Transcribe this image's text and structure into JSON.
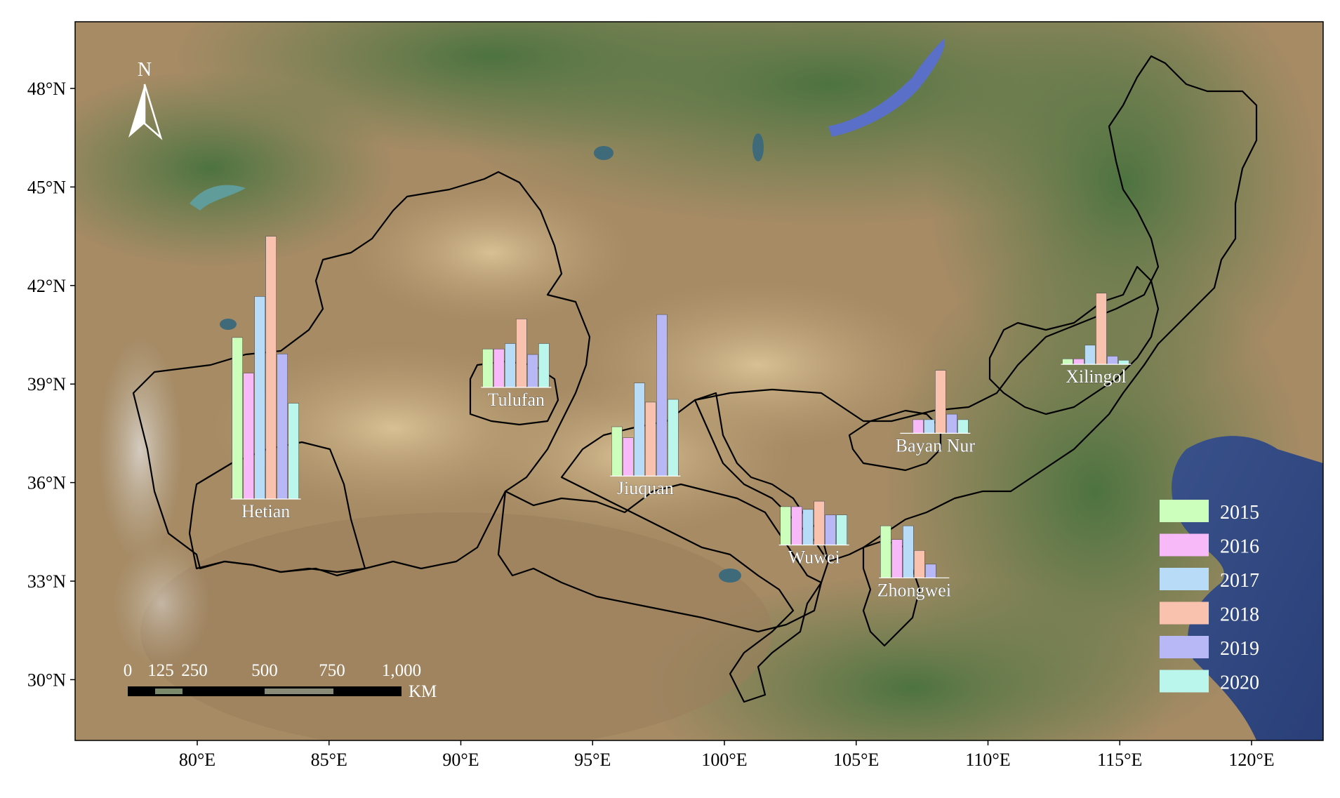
{
  "map": {
    "north_label": "N",
    "lat_labels": [
      "48°N",
      "45°N",
      "42°N",
      "39°N",
      "36°N",
      "33°N",
      "30°N"
    ],
    "lon_labels": [
      "80°E",
      "85°E",
      "90°E",
      "95°E",
      "100°E",
      "105°E",
      "110°E",
      "115°E",
      "120°E"
    ],
    "scale_bar": {
      "labels": [
        "0",
        "125",
        "250",
        "500",
        "750",
        "1,000"
      ],
      "unit": "KM"
    },
    "colors": {
      "2015": "#ccffbb",
      "2016": "#f7b9f7",
      "2017": "#b8dcf8",
      "2018": "#f9c2ae",
      "2019": "#b8b8f6",
      "2020": "#baf6ec"
    },
    "legend": [
      {
        "year": "2015",
        "color": "#ccffbb"
      },
      {
        "year": "2016",
        "color": "#f7b9f7"
      },
      {
        "year": "2017",
        "color": "#b8dcf8"
      },
      {
        "year": "2018",
        "color": "#f9c2ae"
      },
      {
        "year": "2019",
        "color": "#b8b8f6"
      },
      {
        "year": "2020",
        "color": "#baf6ec"
      }
    ]
  },
  "chart_data": {
    "type": "bar",
    "categories": [
      "2015",
      "2016",
      "2017",
      "2018",
      "2019",
      "2020"
    ],
    "legend_placement": "bottom-right",
    "region_charts": [
      {
        "name": "Hetian",
        "label": "Hetian",
        "lon": 82.6,
        "lat": 35.5,
        "values": [
          5.9,
          4.6,
          7.4,
          9.6,
          5.3,
          3.5
        ]
      },
      {
        "name": "Tulufan",
        "label": "Tulufan",
        "lon": 92.1,
        "lat": 38.9,
        "values": [
          1.4,
          1.4,
          1.6,
          2.5,
          1.2,
          1.6
        ]
      },
      {
        "name": "Jiuquan",
        "label": "Jiuquan",
        "lon": 97.0,
        "lat": 36.2,
        "values": [
          1.8,
          1.4,
          3.4,
          2.7,
          5.9,
          2.8
        ]
      },
      {
        "name": "Bayan Nur",
        "label": "Bayan Nur",
        "lon": 108.0,
        "lat": 37.5,
        "values": [
          0.0,
          0.5,
          0.5,
          2.3,
          0.7,
          0.5
        ]
      },
      {
        "name": "Xilingol",
        "label": "Xilingol",
        "lon": 114.1,
        "lat": 39.6,
        "values": [
          0.2,
          0.2,
          0.7,
          2.6,
          0.3,
          0.15
        ]
      },
      {
        "name": "Wuwei",
        "label": "Wuwei",
        "lon": 103.4,
        "lat": 34.1,
        "values": [
          1.4,
          1.4,
          1.3,
          1.6,
          1.1,
          1.1
        ]
      },
      {
        "name": "Zhongwei",
        "label": "Zhongwei",
        "lon": 107.2,
        "lat": 33.1,
        "values": [
          1.9,
          1.4,
          1.9,
          1.0,
          0.5,
          0.0
        ]
      }
    ]
  }
}
